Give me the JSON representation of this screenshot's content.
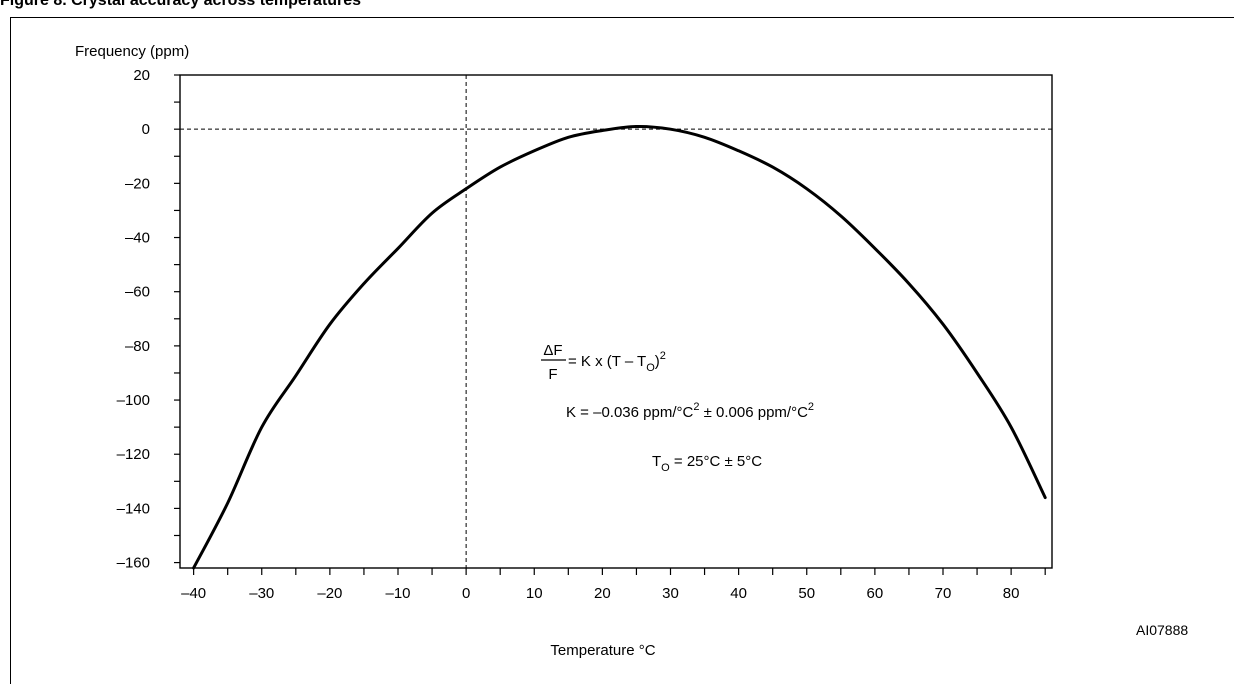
{
  "figure": {
    "title": "Figure 8. Crystal accuracy across temperatures",
    "ref_code": "AI07888"
  },
  "equations": {
    "main_lhs_num": "ΔF",
    "main_lhs_den": "F",
    "main_rhs": "= K x (T – T",
    "main_rhs_sub": "O",
    "main_rhs_close": ")",
    "main_rhs_sup": "2",
    "k_prefix": "K  = –0.036 ppm/°C",
    "k_sup1": "2",
    "k_mid": " ± 0.006 ppm/°C",
    "k_sup2": "2",
    "t0_prefix": "T",
    "t0_sub": "O",
    "t0_rest": " = 25°C ± 5°C"
  },
  "chart_data": {
    "type": "line",
    "title": "Figure 8. Crystal accuracy across temperatures",
    "xlabel": "Temperature °C",
    "ylabel": "Frequency (ppm)",
    "xlim": [
      -42,
      86
    ],
    "ylim": [
      -162,
      20
    ],
    "x_ticks": [
      -40,
      -30,
      -20,
      -10,
      0,
      10,
      20,
      30,
      40,
      50,
      60,
      70,
      80
    ],
    "x_tick_labels": [
      "–40",
      "–30",
      "–20",
      "–10",
      "0",
      "10",
      "20",
      "30",
      "40",
      "50",
      "60",
      "70",
      "80"
    ],
    "y_ticks": [
      20,
      0,
      -20,
      -40,
      -60,
      -80,
      -100,
      -120,
      -140,
      -160
    ],
    "y_tick_labels": [
      "20",
      "0",
      "–20",
      "–40",
      "–60",
      "–80",
      "–100",
      "–120",
      "–140",
      "–160"
    ],
    "x_minor_step": 5,
    "y_minor_step": 10,
    "reference_lines": {
      "x": 0,
      "y": 0,
      "style": "dashed"
    },
    "grid": false,
    "series": [
      {
        "x": [
          -40,
          -35,
          -30,
          -25,
          -20,
          -15,
          -10,
          -5,
          0,
          5,
          10,
          15,
          20,
          25,
          30,
          35,
          40,
          45,
          50,
          55,
          60,
          65,
          70,
          75,
          80,
          85
        ],
        "y": [
          -162,
          -138,
          -110,
          -91,
          -72,
          -57,
          -44,
          -31,
          -22,
          -14,
          -8,
          -3,
          -0.5,
          1,
          0,
          -3,
          -8,
          -14,
          -22,
          -32,
          -44,
          -57,
          -72,
          -90,
          -110,
          -136
        ],
        "color": "#000000"
      }
    ]
  }
}
